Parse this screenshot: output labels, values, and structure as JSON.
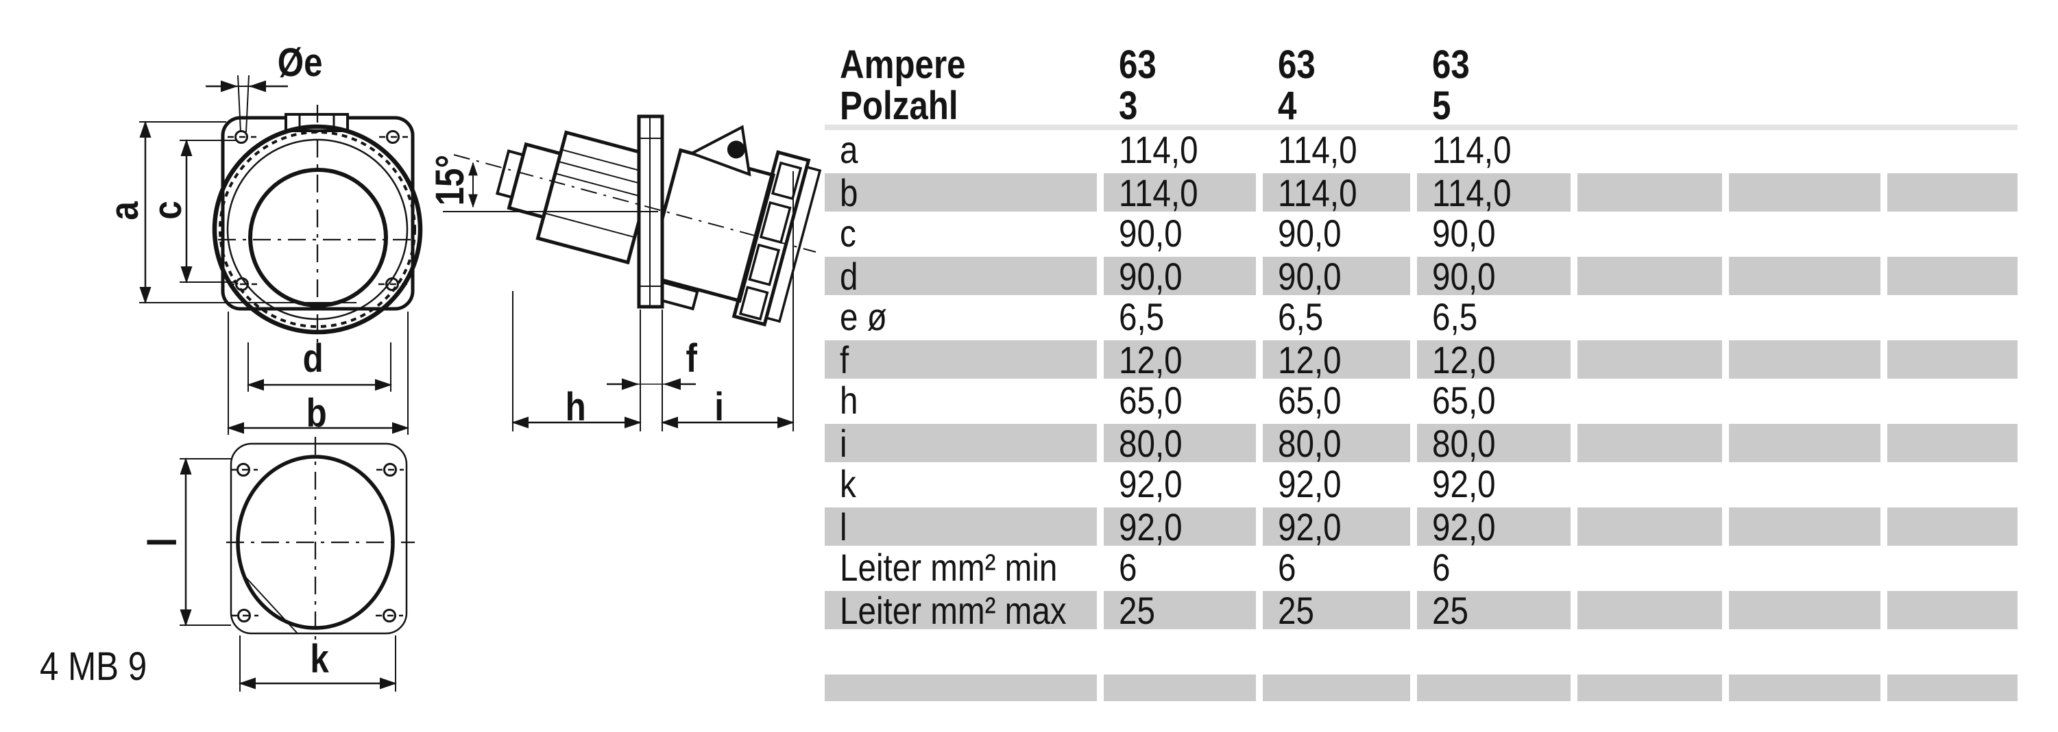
{
  "page": {
    "background": "#ffffff"
  },
  "colors": {
    "ink": "#141414",
    "row_gray": "#cacaca",
    "header_divider": "#e3e3e3"
  },
  "drawing": {
    "labels": {
      "diameter_e": "Øe",
      "a": "a",
      "c": "c",
      "d": "d",
      "b": "b",
      "angle": "15°",
      "f": "f",
      "h": "h",
      "i": "i",
      "l": "l",
      "k": "k"
    },
    "model_code": "4 MB 9"
  },
  "table": {
    "header": {
      "label_lines": [
        "Ampere",
        "Polzahl"
      ],
      "columns": [
        [
          "63",
          "3"
        ],
        [
          "63",
          "4"
        ],
        [
          "63",
          "5"
        ],
        [
          "",
          ""
        ],
        [
          "",
          ""
        ],
        [
          "",
          ""
        ]
      ]
    },
    "rows": [
      {
        "label": "a",
        "values": [
          "114,0",
          "114,0",
          "114,0",
          "",
          "",
          ""
        ]
      },
      {
        "label": "b",
        "values": [
          "114,0",
          "114,0",
          "114,0",
          "",
          "",
          ""
        ]
      },
      {
        "label": "c",
        "values": [
          "90,0",
          "90,0",
          "90,0",
          "",
          "",
          ""
        ]
      },
      {
        "label": "d",
        "values": [
          "90,0",
          "90,0",
          "90,0",
          "",
          "",
          ""
        ]
      },
      {
        "label": "e ø",
        "values": [
          "6,5",
          "6,5",
          "6,5",
          "",
          "",
          ""
        ]
      },
      {
        "label": "f",
        "values": [
          "12,0",
          "12,0",
          "12,0",
          "",
          "",
          ""
        ]
      },
      {
        "label": "h",
        "values": [
          "65,0",
          "65,0",
          "65,0",
          "",
          "",
          ""
        ]
      },
      {
        "label": "i",
        "values": [
          "80,0",
          "80,0",
          "80,0",
          "",
          "",
          ""
        ]
      },
      {
        "label": "k",
        "values": [
          "92,0",
          "92,0",
          "92,0",
          "",
          "",
          ""
        ]
      },
      {
        "label": "l",
        "values": [
          "92,0",
          "92,0",
          "92,0",
          "",
          "",
          ""
        ]
      },
      {
        "label": "Leiter mm² min",
        "values": [
          "6",
          "6",
          "6",
          "",
          "",
          ""
        ]
      },
      {
        "label": "Leiter mm² max",
        "values": [
          "25",
          "25",
          "25",
          "",
          "",
          ""
        ]
      },
      {
        "label": "",
        "values": [
          "",
          "",
          "",
          "",
          "",
          ""
        ]
      },
      {
        "label": "",
        "values": [
          "",
          "",
          "",
          "",
          "",
          ""
        ]
      }
    ]
  }
}
